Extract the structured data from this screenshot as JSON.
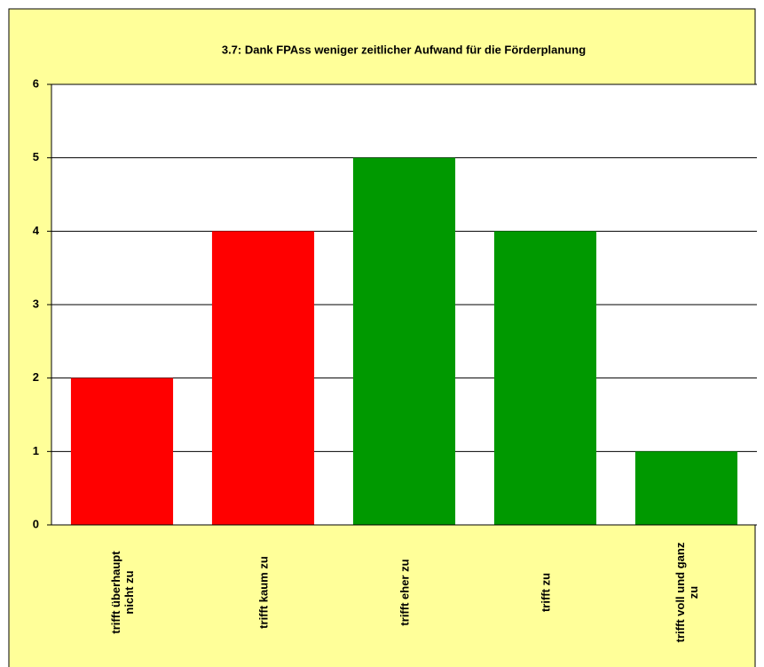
{
  "chart_data": {
    "type": "bar",
    "title": "3.7: Dank FPAss weniger zeitlicher Aufwand für die Förderplanung",
    "categories": [
      "trifft überhaupt nicht zu",
      "trifft kaum zu",
      "trifft eher zu",
      "trifft zu",
      "trifft voll und ganz zu"
    ],
    "values": [
      2,
      4,
      5,
      4,
      1
    ],
    "colors": [
      "#ff0000",
      "#ff0000",
      "#009900",
      "#009900",
      "#009900"
    ],
    "ylim": [
      0,
      6
    ],
    "yticks": [
      0,
      1,
      2,
      3,
      4,
      5,
      6
    ],
    "grid": true
  }
}
